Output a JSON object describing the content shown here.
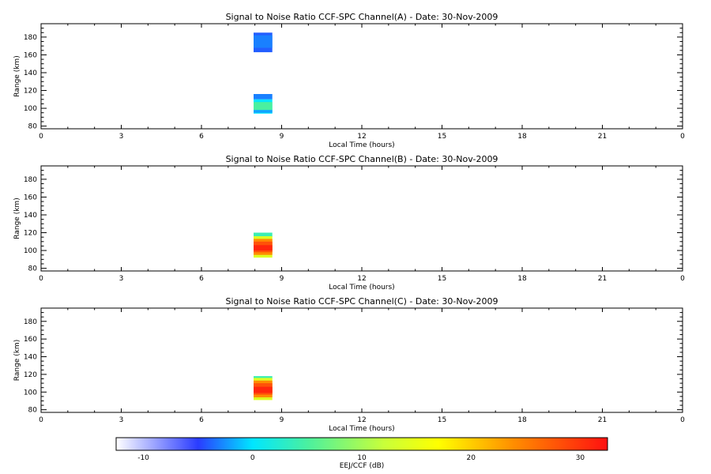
{
  "figure": {
    "background": "#ffffff"
  },
  "chart_data": [
    {
      "type": "heatmap",
      "title": "Signal to Noise Ratio CCF-SPC Channel(A) - Date: 30-Nov-2009",
      "xlabel": "Local Time (hours)",
      "ylabel": "Range (km)",
      "xlim": [
        0,
        24
      ],
      "ylim": [
        77,
        195
      ],
      "xticks": [
        "0",
        "3",
        "6",
        "9",
        "12",
        "15",
        "18",
        "21",
        "0"
      ],
      "yticks": [
        80,
        100,
        120,
        140,
        160,
        180
      ],
      "blocks": [
        {
          "t0": 7.95,
          "t1": 8.65,
          "r0": 163,
          "r1": 185,
          "snr": -4
        },
        {
          "t0": 7.95,
          "t1": 8.65,
          "r0": 168,
          "r1": 182,
          "snr": -3
        },
        {
          "t0": 7.95,
          "t1": 8.65,
          "r0": 110,
          "r1": 116,
          "snr": -3
        },
        {
          "t0": 7.95,
          "t1": 8.65,
          "r0": 94,
          "r1": 110,
          "snr": 0
        },
        {
          "t0": 7.95,
          "t1": 8.65,
          "r0": 98,
          "r1": 107,
          "snr": 5
        },
        {
          "t0": 7.95,
          "t1": 8.65,
          "r0": 95,
          "r1": 98,
          "snr": -2
        }
      ]
    },
    {
      "type": "heatmap",
      "title": "Signal to Noise Ratio CCF-SPC Channel(B) - Date: 30-Nov-2009",
      "xlabel": "Local Time (hours)",
      "ylabel": "Range (km)",
      "xlim": [
        0,
        24
      ],
      "ylim": [
        77,
        195
      ],
      "xticks": [
        "0",
        "3",
        "6",
        "9",
        "12",
        "15",
        "18",
        "21",
        "0"
      ],
      "yticks": [
        80,
        100,
        120,
        140,
        160,
        180
      ],
      "blocks": [
        {
          "t0": 7.95,
          "t1": 8.65,
          "r0": 115,
          "r1": 120,
          "snr": 4
        },
        {
          "t0": 7.95,
          "t1": 8.65,
          "r0": 92,
          "r1": 116,
          "snr": 14
        },
        {
          "t0": 7.95,
          "t1": 8.65,
          "r0": 95,
          "r1": 113,
          "snr": 24
        },
        {
          "t0": 7.95,
          "t1": 8.65,
          "r0": 98,
          "r1": 110,
          "snr": 28
        },
        {
          "t0": 7.95,
          "t1": 8.65,
          "r0": 100,
          "r1": 106,
          "snr": 31
        }
      ]
    },
    {
      "type": "heatmap",
      "title": "Signal to Noise Ratio CCF-SPC Channel(C) - Date: 30-Nov-2009",
      "xlabel": "Local Time (hours)",
      "ylabel": "Range (km)",
      "xlim": [
        0,
        24
      ],
      "ylim": [
        77,
        195
      ],
      "xticks": [
        "0",
        "3",
        "6",
        "9",
        "12",
        "15",
        "18",
        "21",
        "0"
      ],
      "yticks": [
        80,
        100,
        120,
        140,
        160,
        180
      ],
      "blocks": [
        {
          "t0": 7.95,
          "t1": 8.65,
          "r0": 115,
          "r1": 118,
          "snr": 4
        },
        {
          "t0": 7.95,
          "t1": 8.65,
          "r0": 91,
          "r1": 116,
          "snr": 14
        },
        {
          "t0": 7.95,
          "t1": 8.65,
          "r0": 94,
          "r1": 113,
          "snr": 24
        },
        {
          "t0": 7.95,
          "t1": 8.65,
          "r0": 97,
          "r1": 110,
          "snr": 28
        },
        {
          "t0": 7.95,
          "t1": 8.65,
          "r0": 99,
          "r1": 106,
          "snr": 31
        }
      ]
    }
  ],
  "colorbar": {
    "label": "EEJ/CCF (dB)",
    "range": [
      -12.5,
      32.5
    ],
    "ticks": [
      -10,
      0,
      10,
      20,
      30
    ],
    "stops": [
      {
        "v": -12.5,
        "c": "#ffffff"
      },
      {
        "v": -5,
        "c": "#2a3cff"
      },
      {
        "v": 0,
        "c": "#00e6ff"
      },
      {
        "v": 5,
        "c": "#4af0a0"
      },
      {
        "v": 12,
        "c": "#c8ff3a"
      },
      {
        "v": 17,
        "c": "#ffff00"
      },
      {
        "v": 24,
        "c": "#ff8c00"
      },
      {
        "v": 32.5,
        "c": "#ff1010"
      }
    ]
  }
}
